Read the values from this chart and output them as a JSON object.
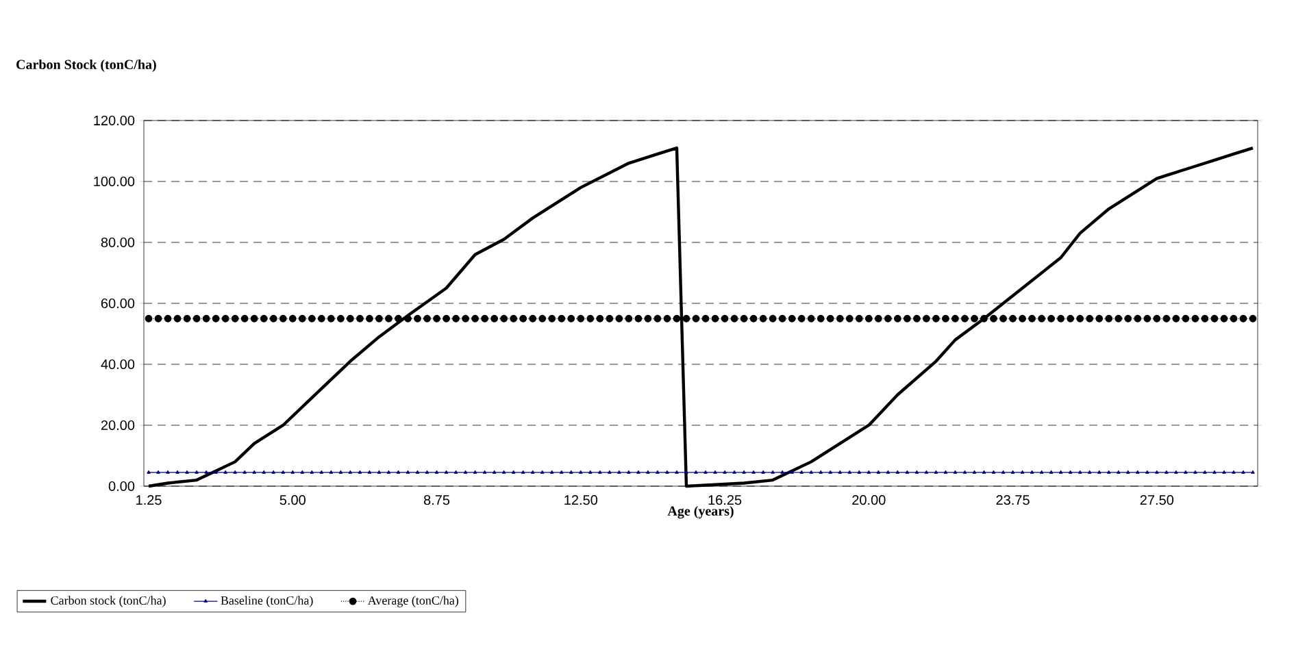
{
  "chart_data": {
    "type": "line",
    "title": "Carbon Stock (tonC/ha)",
    "xlabel": "Age (years)",
    "x": [
      1.25,
      1.5,
      1.75,
      2,
      2.25,
      2.5,
      2.75,
      3,
      3.25,
      3.5,
      3.75,
      4,
      4.25,
      4.5,
      4.75,
      5,
      5.25,
      5.5,
      5.75,
      6,
      6.25,
      6.5,
      6.75,
      7,
      7.25,
      7.5,
      7.75,
      8,
      8.25,
      8.5,
      8.75,
      9,
      9.25,
      9.5,
      9.75,
      10,
      10.25,
      10.5,
      10.75,
      11,
      11.25,
      11.5,
      11.75,
      12,
      12.25,
      12.5,
      12.75,
      13,
      13.25,
      13.5,
      13.75,
      14,
      14.25,
      14.5,
      14.75,
      15,
      15.25,
      15.5,
      15.75,
      16,
      16.25,
      16.5,
      16.75,
      17,
      17.25,
      17.5,
      17.75,
      18,
      18.25,
      18.5,
      18.75,
      19,
      19.25,
      19.5,
      19.75,
      20,
      20.25,
      20.5,
      20.75,
      21,
      21.25,
      21.5,
      21.75,
      22,
      22.25,
      22.5,
      22.75,
      23,
      23.25,
      23.5,
      23.75,
      24,
      24.25,
      24.5,
      24.75,
      25,
      25.25,
      25.5,
      25.75,
      26,
      26.25,
      26.5,
      26.75,
      27,
      27.25,
      27.5,
      27.75,
      28,
      28.25,
      28.5,
      28.75,
      29,
      29.25,
      29.5,
      29.75,
      30
    ],
    "series": [
      {
        "name": "Carbon stock (tonC/ha)",
        "color": "#000000",
        "marker": "none",
        "line_style": "solid",
        "x": [
          1.25,
          1.75,
          2.5,
          3,
          3.5,
          4,
          4.75,
          5.5,
          6.5,
          7.25,
          8,
          9,
          9.75,
          10.5,
          11.25,
          12.5,
          13.75,
          14.5,
          15,
          15.25,
          16.75,
          17.5,
          18.5,
          19,
          20,
          20.75,
          21.75,
          22.25,
          23,
          24,
          25,
          25.5,
          26.25,
          27.5,
          28.5,
          29.5,
          30
        ],
        "values": [
          0,
          1,
          2,
          5,
          8,
          14,
          20,
          29,
          41,
          49,
          56,
          65,
          76,
          81,
          88,
          98,
          106,
          109,
          111,
          0,
          1,
          2,
          8,
          12,
          20,
          30,
          41,
          48,
          55,
          65,
          75,
          83,
          91,
          101,
          105,
          109,
          111
        ]
      },
      {
        "name": "Baseline (tonC/ha)",
        "color": "#000080",
        "marker": "triangle",
        "line_style": "solid",
        "values": [
          4.5,
          4.5,
          4.5,
          4.5,
          4.5,
          4.5,
          4.5,
          4.5,
          4.5,
          4.5,
          4.5,
          4.5,
          4.5,
          4.5,
          4.5,
          4.5,
          4.5,
          4.5,
          4.5,
          4.5,
          4.5,
          4.5,
          4.5,
          4.5,
          4.5,
          4.5,
          4.5,
          4.5,
          4.5,
          4.5,
          4.5,
          4.5,
          4.5,
          4.5,
          4.5,
          4.5,
          4.5,
          4.5,
          4.5,
          4.5,
          4.5,
          4.5,
          4.5,
          4.5,
          4.5,
          4.5,
          4.5,
          4.5,
          4.5,
          4.5,
          4.5,
          4.5,
          4.5,
          4.5,
          4.5,
          4.5,
          4.5,
          4.5,
          4.5,
          4.5,
          4.5,
          4.5,
          4.5,
          4.5,
          4.5,
          4.5,
          4.5,
          4.5,
          4.5,
          4.5,
          4.5,
          4.5,
          4.5,
          4.5,
          4.5,
          4.5,
          4.5,
          4.5,
          4.5,
          4.5,
          4.5,
          4.5,
          4.5,
          4.5,
          4.5,
          4.5,
          4.5,
          4.5,
          4.5,
          4.5,
          4.5,
          4.5,
          4.5,
          4.5,
          4.5,
          4.5,
          4.5,
          4.5,
          4.5,
          4.5,
          4.5,
          4.5,
          4.5,
          4.5,
          4.5,
          4.5,
          4.5,
          4.5,
          4.5,
          4.5,
          4.5,
          4.5,
          4.5,
          4.5,
          4.5,
          4.5
        ]
      },
      {
        "name": "Average (tonC/ha)",
        "color": "#000000",
        "marker": "circle",
        "line_style": "dotted",
        "values": [
          55,
          55,
          55,
          55,
          55,
          55,
          55,
          55,
          55,
          55,
          55,
          55,
          55,
          55,
          55,
          55,
          55,
          55,
          55,
          55,
          55,
          55,
          55,
          55,
          55,
          55,
          55,
          55,
          55,
          55,
          55,
          55,
          55,
          55,
          55,
          55,
          55,
          55,
          55,
          55,
          55,
          55,
          55,
          55,
          55,
          55,
          55,
          55,
          55,
          55,
          55,
          55,
          55,
          55,
          55,
          55,
          55,
          55,
          55,
          55,
          55,
          55,
          55,
          55,
          55,
          55,
          55,
          55,
          55,
          55,
          55,
          55,
          55,
          55,
          55,
          55,
          55,
          55,
          55,
          55,
          55,
          55,
          55,
          55,
          55,
          55,
          55,
          55,
          55,
          55,
          55,
          55,
          55,
          55,
          55,
          55,
          55,
          55,
          55,
          55,
          55,
          55,
          55,
          55,
          55,
          55,
          55,
          55,
          55,
          55,
          55,
          55,
          55,
          55,
          55,
          55
        ]
      }
    ],
    "xlim": [
      1.125,
      30.125
    ],
    "xticks": [
      {
        "value": 1.25,
        "label": "1.25"
      },
      {
        "value": 5,
        "label": "5.00"
      },
      {
        "value": 8.75,
        "label": "8.75"
      },
      {
        "value": 12.5,
        "label": "12.50"
      },
      {
        "value": 16.25,
        "label": "16.25"
      },
      {
        "value": 20,
        "label": "20.00"
      },
      {
        "value": 23.75,
        "label": "23.75"
      },
      {
        "value": 27.5,
        "label": "27.50"
      }
    ],
    "ylim": [
      0,
      120
    ],
    "yticks": [
      {
        "value": 0,
        "label": "0.00"
      },
      {
        "value": 20,
        "label": "20.00"
      },
      {
        "value": 40,
        "label": "40.00"
      },
      {
        "value": 60,
        "label": "60.00"
      },
      {
        "value": 80,
        "label": "80.00"
      },
      {
        "value": 100,
        "label": "100.00"
      },
      {
        "value": 120,
        "label": "120.00"
      }
    ],
    "grid": "y",
    "legend": "bottom"
  }
}
